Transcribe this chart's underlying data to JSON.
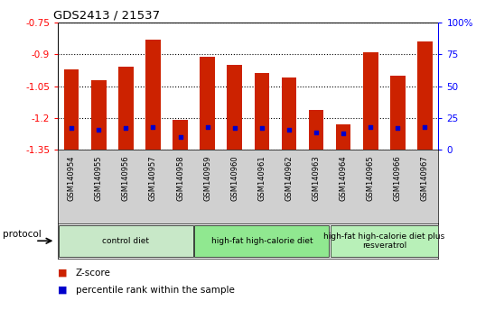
{
  "title": "GDS2413 / 21537",
  "samples": [
    "GSM140954",
    "GSM140955",
    "GSM140956",
    "GSM140957",
    "GSM140958",
    "GSM140959",
    "GSM140960",
    "GSM140961",
    "GSM140962",
    "GSM140963",
    "GSM140964",
    "GSM140965",
    "GSM140966",
    "GSM140967"
  ],
  "zscore": [
    -0.97,
    -1.02,
    -0.96,
    -0.83,
    -1.21,
    -0.91,
    -0.95,
    -0.99,
    -1.01,
    -1.16,
    -1.23,
    -0.89,
    -1.0,
    -0.84
  ],
  "percentile": [
    17,
    16,
    17,
    18,
    10,
    18,
    17,
    17,
    16,
    14,
    13,
    18,
    17,
    18
  ],
  "ylim_left": [
    -1.35,
    -0.75
  ],
  "ylim_right": [
    0,
    100
  ],
  "yticks_left": [
    -1.35,
    -1.2,
    -1.05,
    -0.9,
    -0.75
  ],
  "yticks_right": [
    0,
    25,
    50,
    75,
    100
  ],
  "ytick_labels_right": [
    "0",
    "25",
    "50",
    "75",
    "100%"
  ],
  "bar_color": "#cc2200",
  "dot_color": "#0000cc",
  "bg_color": "#ffffff",
  "groups": [
    {
      "label": "control diet",
      "start": 0,
      "end": 5,
      "color": "#c8e8c8"
    },
    {
      "label": "high-fat high-calorie diet",
      "start": 5,
      "end": 10,
      "color": "#90e890"
    },
    {
      "label": "high-fat high-calorie diet plus\nresveratrol",
      "start": 10,
      "end": 14,
      "color": "#b8f0b8"
    }
  ],
  "protocol_label": "protocol",
  "legend_zscore": "Z-score",
  "legend_percentile": "percentile rank within the sample",
  "bar_width": 0.55,
  "xtick_bg": "#d0d0d0"
}
